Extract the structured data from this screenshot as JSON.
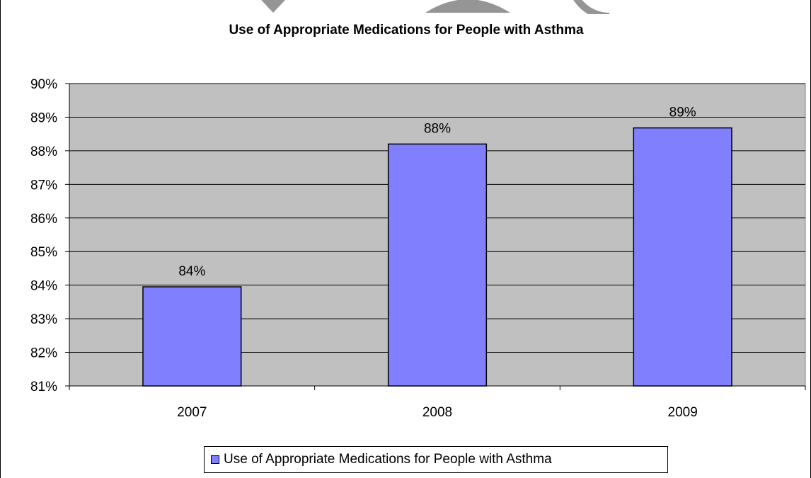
{
  "chart_data": {
    "type": "bar",
    "title": "Use of Appropriate Medications for People with Asthma",
    "categories": [
      "2007",
      "2008",
      "2009"
    ],
    "series": [
      {
        "name": "Use of Appropriate Medications for People with Asthma",
        "values": [
          83.95,
          88.2,
          88.68
        ],
        "data_labels": [
          "84%",
          "88%",
          "89%"
        ]
      }
    ],
    "ylim": [
      81,
      90
    ],
    "yticks": [
      "81%",
      "82%",
      "83%",
      "84%",
      "85%",
      "86%",
      "87%",
      "88%",
      "89%",
      "90%"
    ],
    "xlabel": "",
    "ylabel": "",
    "grid": true,
    "legend_position": "bottom",
    "colors": {
      "bar_fill": "#8080ff",
      "plot_background": "#c0c0c0",
      "gridline": "#000000",
      "watermark": "#8a8a8a"
    }
  }
}
